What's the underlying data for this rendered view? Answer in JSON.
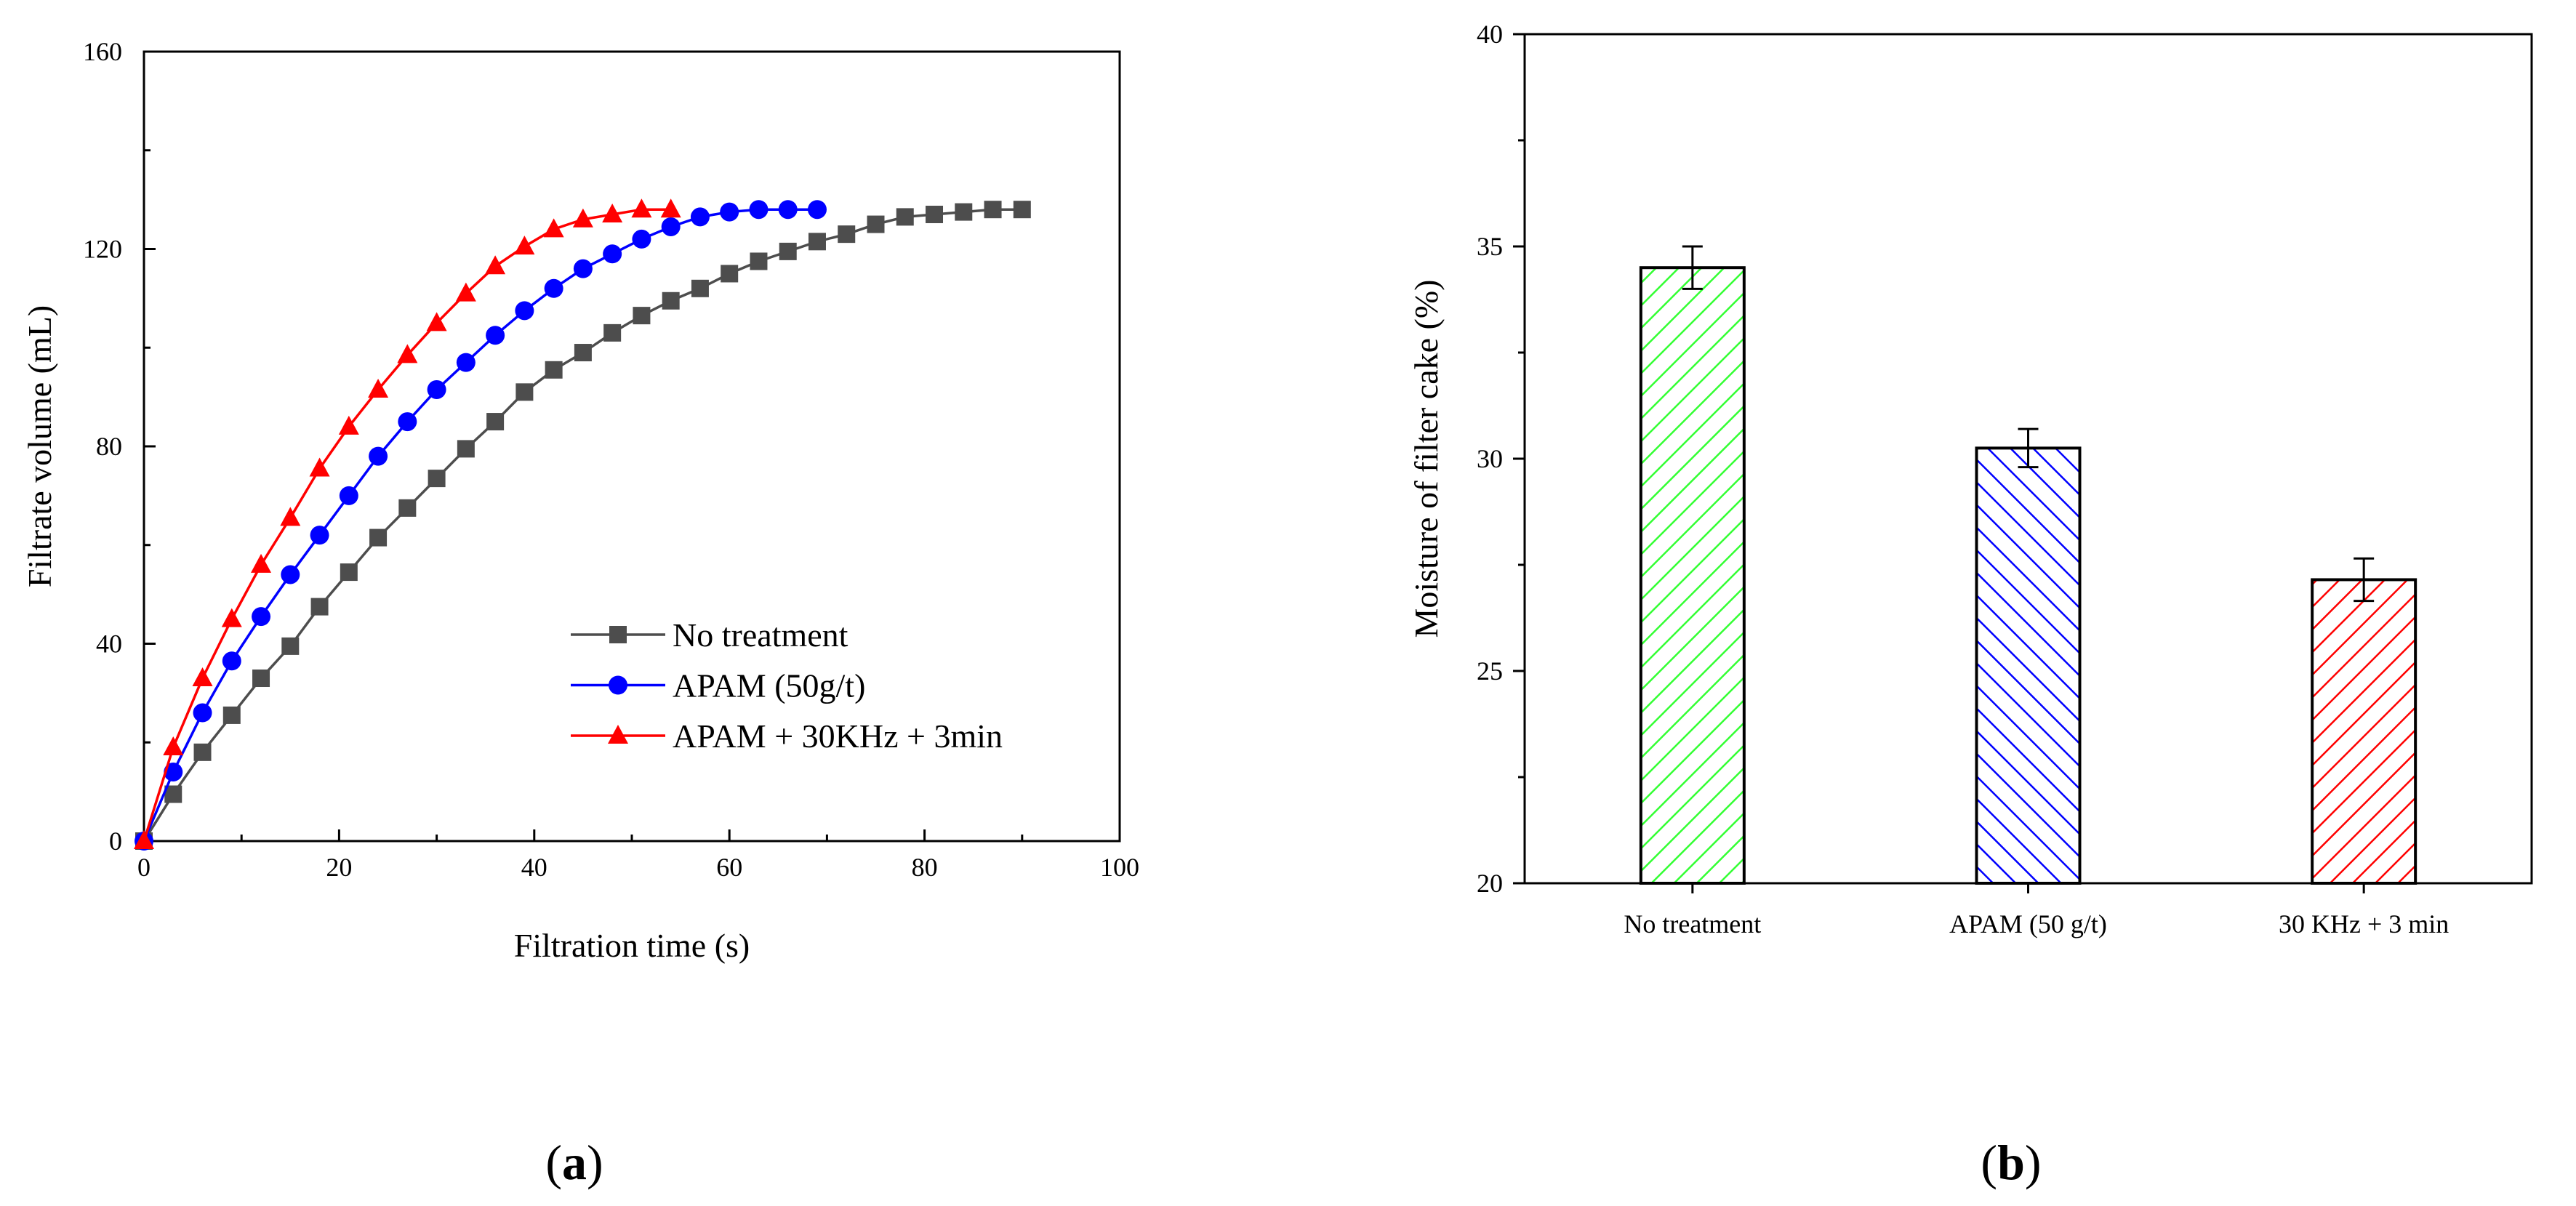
{
  "panel_labels": {
    "a": "a",
    "b": "b",
    "open_paren": "(",
    "close_paren": ")"
  },
  "colors": {
    "no_treatment": "#4d4d4d",
    "apam": "#0000ff",
    "ultrasound": "#ff0000",
    "bar_green": "#33ff33",
    "bar_blue": "#0000ff",
    "bar_red": "#ff0000"
  },
  "chart_data": [
    {
      "type": "line",
      "panel": "a",
      "title": "",
      "xlabel": "Filtration time (s)",
      "ylabel": "Filtrate volume (mL)",
      "xlim": [
        0,
        100
      ],
      "ylim": [
        0,
        160
      ],
      "xticks": [
        0,
        20,
        40,
        60,
        80,
        100
      ],
      "yticks": [
        0,
        40,
        80,
        120,
        160
      ],
      "xtick_labels": [
        "0",
        "20",
        "40",
        "60",
        "80",
        "100"
      ],
      "ytick_labels": [
        "0",
        "40",
        "80",
        "120",
        "160"
      ],
      "legend_position": "lower-right",
      "series": [
        {
          "name": "No treatment",
          "marker": "square",
          "color": "#4d4d4d",
          "x": [
            0,
            3,
            6,
            9,
            12,
            15,
            18,
            21,
            24,
            27,
            30,
            33,
            36,
            39,
            42,
            45,
            48,
            51,
            54,
            57,
            60,
            63,
            66,
            69,
            72,
            75,
            78,
            81,
            84,
            87,
            90
          ],
          "y": [
            0,
            9.5,
            18,
            25.5,
            33,
            39.5,
            47.5,
            54.5,
            61.5,
            67.5,
            73.5,
            79.5,
            85,
            91,
            95.5,
            99,
            103,
            106.5,
            109.5,
            112,
            115,
            117.5,
            119.5,
            121.5,
            123,
            125,
            126.5,
            127,
            127.5,
            128,
            128
          ]
        },
        {
          "name": "APAM (50g/t)",
          "marker": "circle",
          "color": "#0000ff",
          "x": [
            0,
            3,
            6,
            9,
            12,
            15,
            18,
            21,
            24,
            27,
            30,
            33,
            36,
            39,
            42,
            45,
            48,
            51,
            54,
            57,
            60,
            63,
            66,
            69
          ],
          "y": [
            0,
            14,
            26,
            36.5,
            45.5,
            54,
            62,
            70,
            78,
            85,
            91.5,
            97,
            102.5,
            107.5,
            112,
            116,
            119,
            122,
            124.5,
            126.5,
            127.5,
            128,
            128,
            128
          ]
        },
        {
          "name": "APAM + 30KHz + 3min",
          "marker": "triangle",
          "color": "#ff0000",
          "x": [
            0,
            3,
            6,
            9,
            12,
            15,
            18,
            21,
            24,
            27,
            30,
            33,
            36,
            39,
            42,
            45,
            48,
            51,
            54
          ],
          "y": [
            0,
            19,
            33,
            45,
            56,
            65.5,
            75.5,
            84,
            91.5,
            98.5,
            105,
            111,
            116.5,
            120.5,
            124,
            126,
            127,
            128,
            128
          ]
        }
      ]
    },
    {
      "type": "bar",
      "panel": "b",
      "title": "",
      "xlabel": "",
      "ylabel": "Moisture of filter cake (%)",
      "ylim": [
        20,
        40
      ],
      "yticks": [
        20,
        25,
        30,
        35,
        40
      ],
      "ytick_labels": [
        "20",
        "25",
        "30",
        "35",
        "40"
      ],
      "categories": [
        "No treatment",
        "APAM (50 g/t)",
        "30 KHz + 3 min"
      ],
      "values": [
        34.5,
        30.25,
        27.15
      ],
      "errors": [
        0.5,
        0.45,
        0.5
      ],
      "bar_colors": [
        "#33ff33",
        "#0000ff",
        "#ff0000"
      ],
      "hatch": [
        "forward",
        "backward",
        "forward"
      ]
    }
  ]
}
